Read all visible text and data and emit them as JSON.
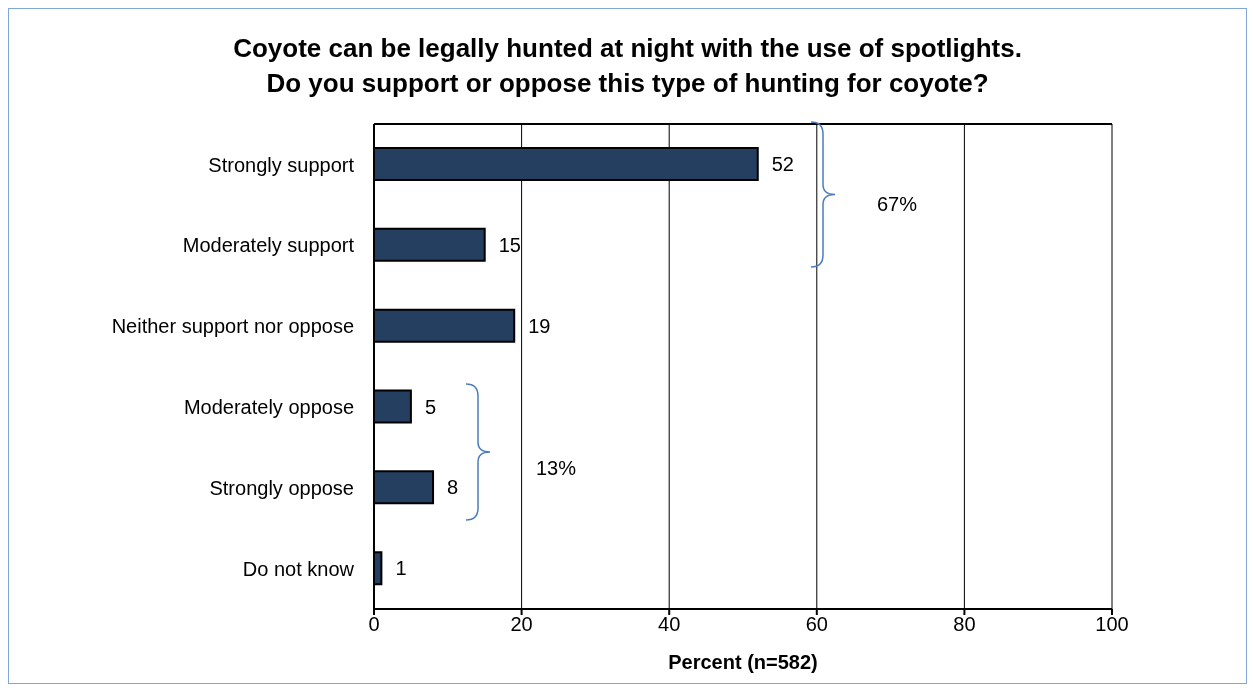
{
  "chart_data": {
    "type": "bar",
    "orientation": "horizontal",
    "title": "Coyote can be legally hunted at night with the use of spotlights.\nDo you support or oppose this type of hunting for coyote?",
    "xlabel": "Percent (n=582)",
    "categories": [
      "Strongly support",
      "Moderately support",
      "Neither support nor oppose",
      "Moderately oppose",
      "Strongly oppose",
      "Do not know"
    ],
    "values": [
      52,
      15,
      19,
      5,
      8,
      1
    ],
    "color": "#243f60",
    "xlim": [
      0,
      100
    ],
    "xticks": [
      0,
      20,
      40,
      60,
      80,
      100
    ],
    "grid": "x",
    "data_labels": true,
    "annotations": [
      "67%",
      "13%"
    ]
  }
}
